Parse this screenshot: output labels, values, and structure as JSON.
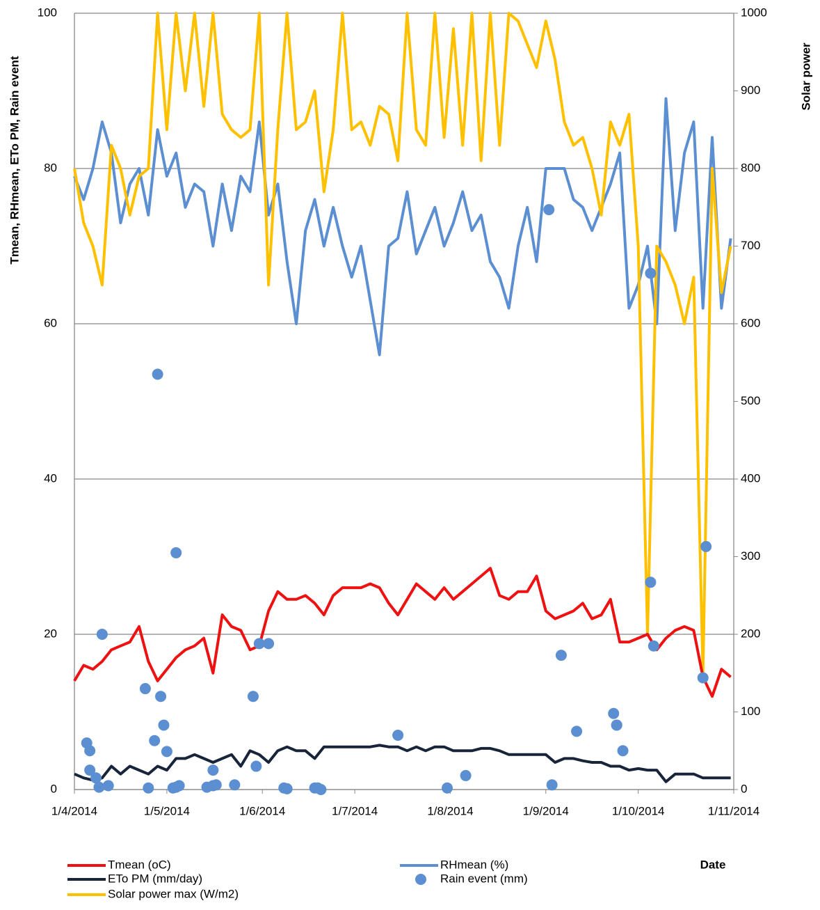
{
  "chart_data": {
    "type": "line",
    "y_label": "Tmean, RHmean, ETo PM, Rain event",
    "y2_label": "Solar power",
    "x_label": "Date",
    "xlim": [
      "1/4/2014",
      "1/11/2014"
    ],
    "xticks": [
      "1/4/2014",
      "1/5/2014",
      "1/6/2014",
      "1/7/2014",
      "1/8/2014",
      "1/9/2014",
      "1/10/2014",
      "1/11/2014"
    ],
    "ylim": [
      0,
      100
    ],
    "yticks": [
      0,
      20,
      40,
      60,
      80,
      100
    ],
    "y2lim": [
      0,
      1000
    ],
    "y2ticks": [
      0,
      100,
      200,
      300,
      400,
      500,
      600,
      700,
      800,
      900,
      1000
    ],
    "grid": true,
    "x": [
      "1/4/2014",
      "4/4/2014",
      "7/4/2014",
      "10/4/2014",
      "13/4/2014",
      "16/4/2014",
      "19/4/2014",
      "22/4/2014",
      "25/4/2014",
      "28/4/2014",
      "1/5/2014",
      "4/5/2014",
      "7/5/2014",
      "10/5/2014",
      "13/5/2014",
      "16/5/2014",
      "19/5/2014",
      "22/5/2014",
      "25/5/2014",
      "28/5/2014",
      "31/5/2014",
      "3/6/2014",
      "6/6/2014",
      "9/6/2014",
      "12/6/2014",
      "15/6/2014",
      "18/6/2014",
      "21/6/2014",
      "24/6/2014",
      "27/6/2014",
      "30/6/2014",
      "3/7/2014",
      "6/7/2014",
      "9/7/2014",
      "12/7/2014",
      "15/7/2014",
      "18/7/2014",
      "21/7/2014",
      "24/7/2014",
      "27/7/2014",
      "30/7/2014",
      "2/8/2014",
      "5/8/2014",
      "8/8/2014",
      "11/8/2014",
      "14/8/2014",
      "17/8/2014",
      "20/8/2014",
      "23/8/2014",
      "26/8/2014",
      "29/8/2014",
      "1/9/2014",
      "4/9/2014",
      "7/9/2014",
      "10/9/2014",
      "13/9/2014",
      "16/9/2014",
      "19/9/2014",
      "22/9/2014",
      "25/9/2014",
      "28/9/2014",
      "1/10/2014",
      "4/10/2014",
      "7/10/2014",
      "10/10/2014",
      "13/10/2014",
      "16/10/2014",
      "19/10/2014",
      "22/10/2014",
      "25/10/2014",
      "28/10/2014",
      "31/10/2014"
    ],
    "series": [
      {
        "name": "Tmean (oC)",
        "type": "line",
        "color": "#ee1111",
        "values": [
          14,
          16,
          15.5,
          16.5,
          18,
          18.5,
          19,
          21,
          16.5,
          14,
          15.5,
          17,
          18,
          18.5,
          19.5,
          15,
          22.5,
          21,
          20.5,
          18,
          18.5,
          23,
          25.5,
          24.5,
          24.5,
          25,
          24,
          22.5,
          25,
          26,
          26,
          26,
          26.5,
          26,
          24,
          22.5,
          24.5,
          26.5,
          25.5,
          24.5,
          26,
          24.5,
          25.5,
          26.5,
          27.5,
          28.5,
          25,
          24.5,
          25.5,
          25.5,
          27.5,
          23,
          22,
          22.5,
          23,
          24,
          22,
          22.5,
          24.5,
          19,
          19,
          19.5,
          20,
          18,
          19.5,
          20.5,
          21,
          20.5,
          14.5,
          12,
          15.5,
          14.5
        ]
      },
      {
        "name": "RHmean (%)",
        "type": "line",
        "color": "#5b8fd1",
        "values": [
          79,
          76,
          80,
          86,
          82,
          73,
          78,
          80,
          74,
          85,
          79,
          82,
          75,
          78,
          77,
          70,
          78,
          72,
          79,
          77,
          86,
          74,
          78,
          68,
          60,
          72,
          76,
          70,
          75,
          70,
          66,
          70,
          63,
          56,
          70,
          71,
          77,
          69,
          72,
          75,
          70,
          73,
          77,
          72,
          74,
          68,
          66,
          62,
          70,
          75,
          68,
          80,
          80,
          80,
          76,
          75,
          72,
          75,
          78,
          82,
          62,
          65,
          70,
          60,
          89,
          72,
          82,
          86,
          62,
          84,
          62,
          71
        ]
      },
      {
        "name": "ETo PM (mm/day)",
        "type": "line",
        "color": "#17243a",
        "values": [
          2,
          1.5,
          1.2,
          1.5,
          3,
          2,
          3,
          2.5,
          2,
          3,
          2.5,
          4,
          4,
          4.5,
          4,
          3.5,
          4,
          4.5,
          3,
          5,
          4.5,
          3.5,
          5,
          5.5,
          5,
          5,
          4,
          5.5,
          5.5,
          5.5,
          5.5,
          5.5,
          5.5,
          5.7,
          5.5,
          5.5,
          5,
          5.5,
          5,
          5.5,
          5.5,
          5,
          5,
          5,
          5.3,
          5.3,
          5,
          4.5,
          4.5,
          4.5,
          4.5,
          4.5,
          3.5,
          4,
          4,
          3.7,
          3.5,
          3.5,
          3,
          3,
          2.5,
          2.7,
          2.5,
          2.5,
          1,
          2,
          2,
          2,
          1.5,
          1.5,
          1.5,
          1.5
        ]
      },
      {
        "name": "Rain event (mm)",
        "type": "scatter",
        "color": "#5b8fd1",
        "x": [
          "5/4/2014",
          "6/4/2014",
          "6/4/2014",
          "8/4/2014",
          "9/4/2014",
          "10/4/2014",
          "12/4/2014",
          "24/4/2014",
          "25/4/2014",
          "27/4/2014",
          "28/4/2014",
          "29/4/2014",
          "30/4/2014",
          "1/5/2014",
          "3/5/2014",
          "4/5/2014",
          "4/5/2014",
          "5/5/2014",
          "14/5/2014",
          "16/5/2014",
          "16/5/2014",
          "17/5/2014",
          "23/5/2014",
          "29/5/2014",
          "30/5/2014",
          "31/5/2014",
          "3/6/2014",
          "8/6/2014",
          "9/6/2014",
          "18/6/2014",
          "19/6/2014",
          "20/6/2014",
          "15/7/2014",
          "31/7/2014",
          "6/8/2014",
          "2/9/2014",
          "3/9/2014",
          "6/9/2014",
          "11/9/2014",
          "23/9/2014",
          "24/9/2014",
          "24/9/2014",
          "26/9/2014",
          "5/10/2014",
          "5/10/2014",
          "6/10/2014",
          "22/10/2014",
          "23/10/2014"
        ],
        "values": [
          6,
          5,
          2.5,
          1.5,
          0.3,
          20,
          0.5,
          13,
          0.2,
          6.3,
          53.5,
          12,
          8.3,
          4.9,
          0.2,
          0.3,
          30.5,
          0.5,
          0.3,
          0.5,
          2.5,
          0.6,
          0.6,
          12,
          3,
          18.8,
          18.8,
          0.2,
          0.1,
          0.2,
          0.2,
          0,
          7,
          0.2,
          1.8,
          74.7,
          0.6,
          17.3,
          7.5,
          9.8,
          8.3,
          8.3,
          5,
          26.7,
          66.5,
          18.5,
          14.4,
          31.3
        ]
      },
      {
        "name": "Solar power max (W/m2)",
        "type": "line",
        "axis": "y2",
        "color": "#ffc000",
        "values": [
          800,
          730,
          700,
          650,
          830,
          800,
          740,
          790,
          800,
          1000,
          850,
          1000,
          900,
          1000,
          880,
          1000,
          870,
          850,
          840,
          850,
          1000,
          650,
          850,
          1000,
          850,
          860,
          900,
          770,
          850,
          1000,
          850,
          860,
          830,
          880,
          870,
          810,
          1000,
          850,
          830,
          1000,
          840,
          980,
          830,
          1000,
          810,
          1000,
          830,
          1000,
          990,
          960,
          930,
          990,
          940,
          860,
          830,
          840,
          800,
          740,
          860,
          830,
          870,
          700,
          200,
          700,
          680,
          650,
          600,
          660,
          150,
          800,
          640,
          700
        ]
      }
    ]
  }
}
